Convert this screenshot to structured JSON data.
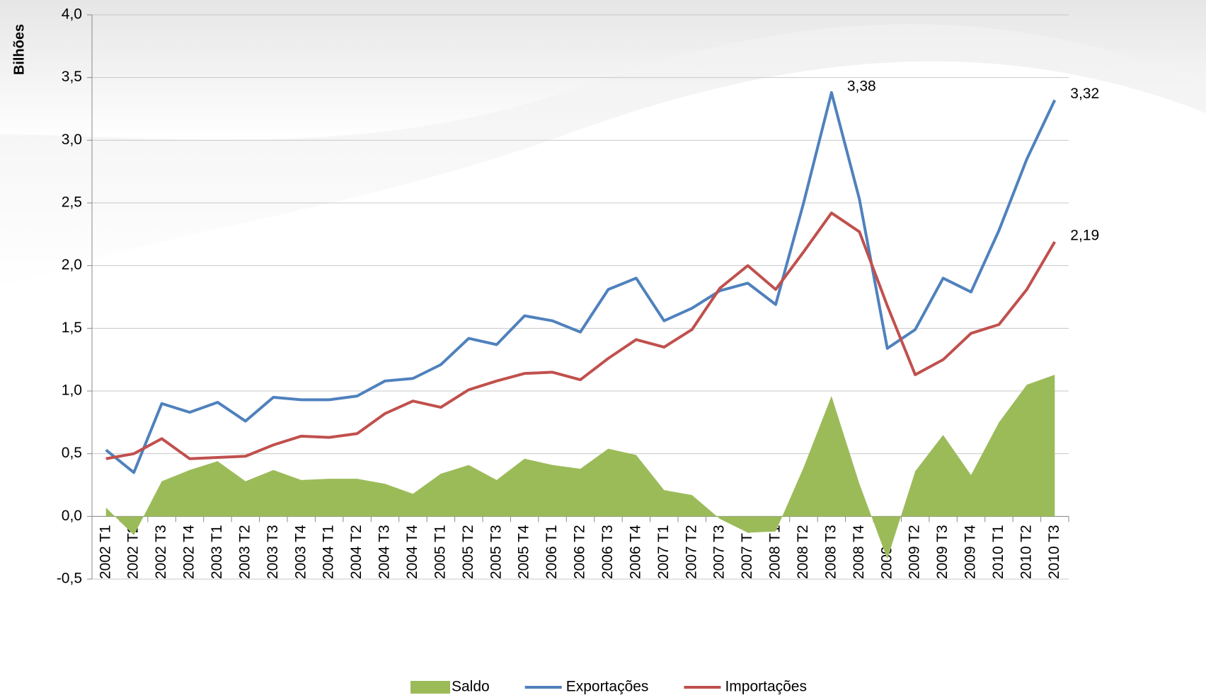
{
  "chart_data": {
    "type": "line",
    "y_label": "Bilhões",
    "categories": [
      "2002 T1",
      "2002 T2",
      "2002 T3",
      "2002 T4",
      "2003 T1",
      "2003 T2",
      "2003 T3",
      "2003 T4",
      "2004 T1",
      "2004 T2",
      "2004 T3",
      "2004 T4",
      "2005 T1",
      "2005 T2",
      "2005 T3",
      "2005 T4",
      "2006 T1",
      "2006 T2",
      "2006 T3",
      "2006 T4",
      "2007 T1",
      "2007 T2",
      "2007 T3",
      "2007 T4",
      "2008 T1",
      "2008 T2",
      "2008 T3",
      "2008 T4",
      "2009 T1",
      "2009 T2",
      "2009 T3",
      "2009 T4",
      "2010 T1",
      "2010 T2",
      "2010 T3"
    ],
    "series": [
      {
        "name": "Saldo",
        "kind": "area",
        "color": "#9BBB59",
        "values": [
          0.07,
          -0.15,
          0.28,
          0.37,
          0.44,
          0.28,
          0.37,
          0.29,
          0.3,
          0.3,
          0.26,
          0.18,
          0.34,
          0.41,
          0.29,
          0.46,
          0.41,
          0.38,
          0.54,
          0.49,
          0.21,
          0.17,
          -0.02,
          -0.13,
          -0.12,
          0.39,
          0.96,
          0.26,
          -0.34,
          0.36,
          0.65,
          0.33,
          0.75,
          1.05,
          1.13
        ]
      },
      {
        "name": "Exportações",
        "kind": "line",
        "color": "#4F81BD",
        "values": [
          0.53,
          0.35,
          0.9,
          0.83,
          0.91,
          0.76,
          0.95,
          0.93,
          0.93,
          0.96,
          1.08,
          1.1,
          1.21,
          1.42,
          1.37,
          1.6,
          1.56,
          1.47,
          1.81,
          1.9,
          1.56,
          1.66,
          1.8,
          1.86,
          1.69,
          2.5,
          3.38,
          2.53,
          1.34,
          1.49,
          1.9,
          1.79,
          2.28,
          2.85,
          3.32
        ],
        "value_labels": [
          null,
          null,
          null,
          null,
          null,
          null,
          null,
          null,
          null,
          null,
          null,
          null,
          null,
          null,
          null,
          null,
          null,
          null,
          null,
          null,
          null,
          null,
          null,
          null,
          null,
          null,
          "3,38",
          null,
          null,
          null,
          null,
          null,
          null,
          null,
          "3,32"
        ]
      },
      {
        "name": "Importações",
        "kind": "line",
        "color": "#C0504D",
        "values": [
          0.46,
          0.5,
          0.62,
          0.46,
          0.47,
          0.48,
          0.57,
          0.64,
          0.63,
          0.66,
          0.82,
          0.92,
          0.87,
          1.01,
          1.08,
          1.14,
          1.15,
          1.09,
          1.26,
          1.41,
          1.35,
          1.49,
          1.82,
          2.0,
          1.81,
          2.11,
          2.42,
          2.27,
          1.68,
          1.13,
          1.25,
          1.46,
          1.53,
          1.81,
          2.19
        ],
        "value_labels": [
          null,
          null,
          null,
          null,
          null,
          null,
          null,
          null,
          null,
          null,
          null,
          null,
          null,
          null,
          null,
          null,
          null,
          null,
          null,
          null,
          null,
          null,
          null,
          null,
          null,
          null,
          null,
          null,
          null,
          null,
          null,
          null,
          null,
          null,
          "2,19"
        ]
      }
    ],
    "ylim": [
      -0.5,
      4.0
    ],
    "yticks": [
      {
        "value": -0.5,
        "label": "-0,5"
      },
      {
        "value": 0,
        "label": "0,0"
      },
      {
        "value": 0.5,
        "label": "0,5"
      },
      {
        "value": 1.0,
        "label": "1,0"
      },
      {
        "value": 1.5,
        "label": "1,5"
      },
      {
        "value": 2.0,
        "label": "2,0"
      },
      {
        "value": 2.5,
        "label": "2,5"
      },
      {
        "value": 3.0,
        "label": "3,0"
      },
      {
        "value": 3.5,
        "label": "3,5"
      },
      {
        "value": 4.0,
        "label": "4,0"
      }
    ],
    "grid": true,
    "legend": "bottom"
  }
}
